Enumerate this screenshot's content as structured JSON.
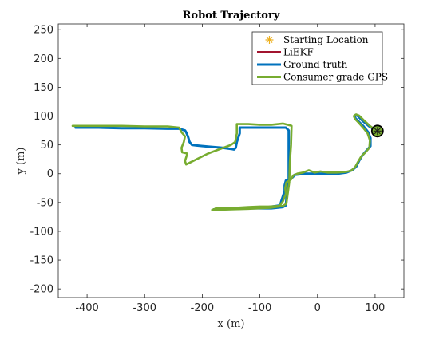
{
  "chart_data": {
    "type": "line",
    "title": "Robot Trajectory",
    "xlabel": "x (m)",
    "ylabel": "y (m)",
    "xlim": [
      -450,
      150
    ],
    "ylim": [
      -215,
      260
    ],
    "xticks": [
      -400,
      -300,
      -200,
      -100,
      0,
      100
    ],
    "yticks": [
      -200,
      -150,
      -100,
      -50,
      0,
      50,
      100,
      150,
      200,
      250
    ],
    "legend_position": "top-right",
    "series": [
      {
        "name": "Starting Location",
        "kind": "marker",
        "color": "#edb120",
        "x": [
          104
        ],
        "y": [
          74
        ]
      },
      {
        "name": "LiEKF",
        "kind": "line",
        "color": "#a2142f",
        "x": [],
        "y": []
      },
      {
        "name": "Ground truth",
        "kind": "line",
        "color": "#0072bd",
        "x": [
          104,
          90,
          78,
          70,
          66,
          64,
          66,
          72,
          80,
          88,
          92,
          92,
          85,
          78,
          72,
          67,
          60,
          50,
          35,
          20,
          0,
          -20,
          -40,
          -42,
          -45,
          -55,
          -57,
          -57,
          -62,
          -65,
          -85,
          -100,
          -120,
          -140,
          -175,
          -177,
          -180,
          -140,
          -120,
          -100,
          -80,
          -60,
          -55,
          -52,
          -50,
          -50,
          -50,
          -55,
          -60,
          -80,
          -100,
          -120,
          -135,
          -135,
          -140,
          -142,
          -145,
          -150,
          -165,
          -190,
          -210,
          -218,
          -222,
          -225,
          -228,
          -230,
          -240,
          -260,
          -300,
          -340,
          -380,
          -420
        ],
        "y": [
          74,
          82,
          92,
          100,
          102,
          100,
          96,
          90,
          82,
          72,
          62,
          48,
          40,
          32,
          22,
          12,
          6,
          2,
          0,
          0,
          0,
          0,
          -2,
          -5,
          -8,
          -12,
          -20,
          -30,
          -45,
          -55,
          -58,
          -58,
          -59,
          -60,
          -61,
          -62,
          -62,
          -61,
          -60,
          -60,
          -60,
          -58,
          -55,
          -20,
          -10,
          30,
          75,
          80,
          80,
          80,
          80,
          80,
          80,
          70,
          55,
          45,
          42,
          43,
          45,
          47,
          49,
          50,
          55,
          65,
          72,
          75,
          78,
          78,
          79,
          79,
          80,
          80
        ]
      },
      {
        "name": "Consumer grade GPS",
        "kind": "line",
        "color": "#77ac30",
        "x": [
          104,
          92,
          80,
          72,
          67,
          63,
          65,
          71,
          79,
          87,
          91,
          90,
          84,
          76,
          70,
          65,
          58,
          48,
          33,
          18,
          5,
          -5,
          -15,
          -25,
          -35,
          -42,
          -46,
          -54,
          -56,
          -55,
          -60,
          -66,
          -85,
          -100,
          -120,
          -140,
          -175,
          -178,
          -183,
          -150,
          -120,
          -100,
          -80,
          -60,
          -54,
          -51,
          -49,
          -48,
          -46,
          -45,
          -52,
          -60,
          -80,
          -100,
          -120,
          -140,
          -140,
          -143,
          -150,
          -190,
          -228,
          -230,
          -226,
          -235,
          -236,
          -232,
          -230,
          -236,
          -240,
          -260,
          -300,
          -340,
          -380,
          -425
        ],
        "y": [
          74,
          82,
          93,
          101,
          103,
          100,
          95,
          89,
          80,
          70,
          58,
          45,
          38,
          30,
          20,
          11,
          5,
          3,
          2,
          2,
          4,
          2,
          6,
          2,
          0,
          -3,
          -10,
          -15,
          -25,
          -35,
          -48,
          -56,
          -57,
          -57,
          -58,
          -59,
          -59,
          -61,
          -63,
          -62,
          -61,
          -60,
          -59,
          -56,
          -52,
          -30,
          -15,
          20,
          50,
          83,
          85,
          87,
          85,
          85,
          86,
          86,
          70,
          55,
          50,
          35,
          16,
          22,
          35,
          37,
          45,
          55,
          65,
          72,
          80,
          82,
          82,
          83,
          83,
          83
        ]
      }
    ]
  }
}
